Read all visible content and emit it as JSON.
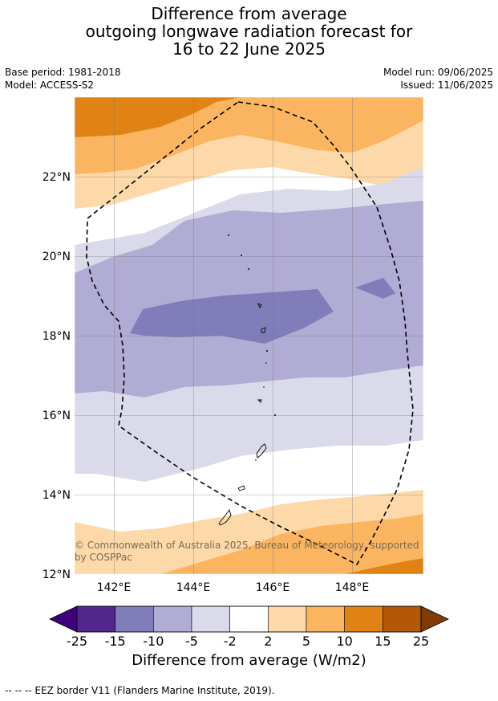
{
  "title_lines": [
    "Difference from average",
    "outgoing longwave radiation forecast for",
    "16 to 22 June 2025"
  ],
  "meta": {
    "base_period": "Base period: 1981-2018",
    "model": "Model: ACCESS-S2",
    "model_run": "Model run: 09/06/2025",
    "issued": "Issued: 11/06/2025"
  },
  "map": {
    "lat_labels": [
      "22°N",
      "20°N",
      "18°N",
      "16°N",
      "14°N",
      "12°N"
    ],
    "lon_labels": [
      "142°E",
      "144°E",
      "146°E",
      "148°E"
    ],
    "copyright": "© Commonwealth of Australia 2025, Bureau of Meteorology, supported by COSPPac"
  },
  "colorbar": {
    "ticks": [
      "-25",
      "-15",
      "-10",
      "-5",
      "-2",
      "2",
      "5",
      "10",
      "15",
      "25"
    ],
    "colors": [
      "#3f007d",
      "#54278f",
      "#807dba",
      "#b1acd4",
      "#dadaeb",
      "#ffffff",
      "#fdd9a9",
      "#fbb560",
      "#e08214",
      "#b35806",
      "#7f3b08"
    ],
    "title": "Difference from average (W/m2)"
  },
  "footer": "--  --  -- EEZ border V11 (Flanders Marine Institute, 2019)."
}
